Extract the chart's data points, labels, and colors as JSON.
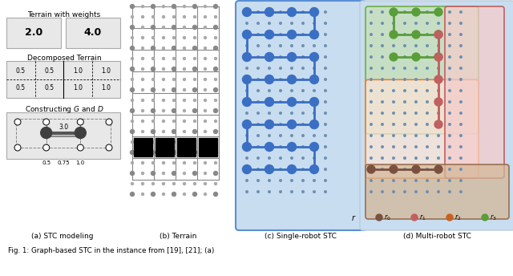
{
  "fig_width": 6.4,
  "fig_height": 3.44,
  "bg_color": "#ffffff",
  "panel_labels": [
    "(a) STC modeling",
    "(b) Terrain",
    "(c) Single-robot STC",
    "(d) Multi-robot STC"
  ],
  "grid_color": "#999999",
  "dot_color": "#aaaaaa",
  "blue_path_color": "#3a6fc4",
  "blue_node_color": "#3a6fc4",
  "blue_bg_color": "#c8ddf0",
  "blue_bg_edge": "#5a8fd4",
  "green_color": "#5a9e3a",
  "green_bg_color": "#c6e0b4",
  "green_bg_edge": "#70ad47",
  "orange_bg_color": "#f8d5bc",
  "orange_bg_edge": "#d4703a",
  "pink_bg_color": "#f4c8c0",
  "pink_bg_edge": "#c07060",
  "brown_node_color": "#7b5040",
  "brown_bg_color": "#d4b898",
  "brown_bg_edge": "#9a7050",
  "dark_gray": "#404040",
  "light_gray_box": "#e8e8e8",
  "caption_fontsize": 6.5,
  "label_fontsize": 6.0
}
